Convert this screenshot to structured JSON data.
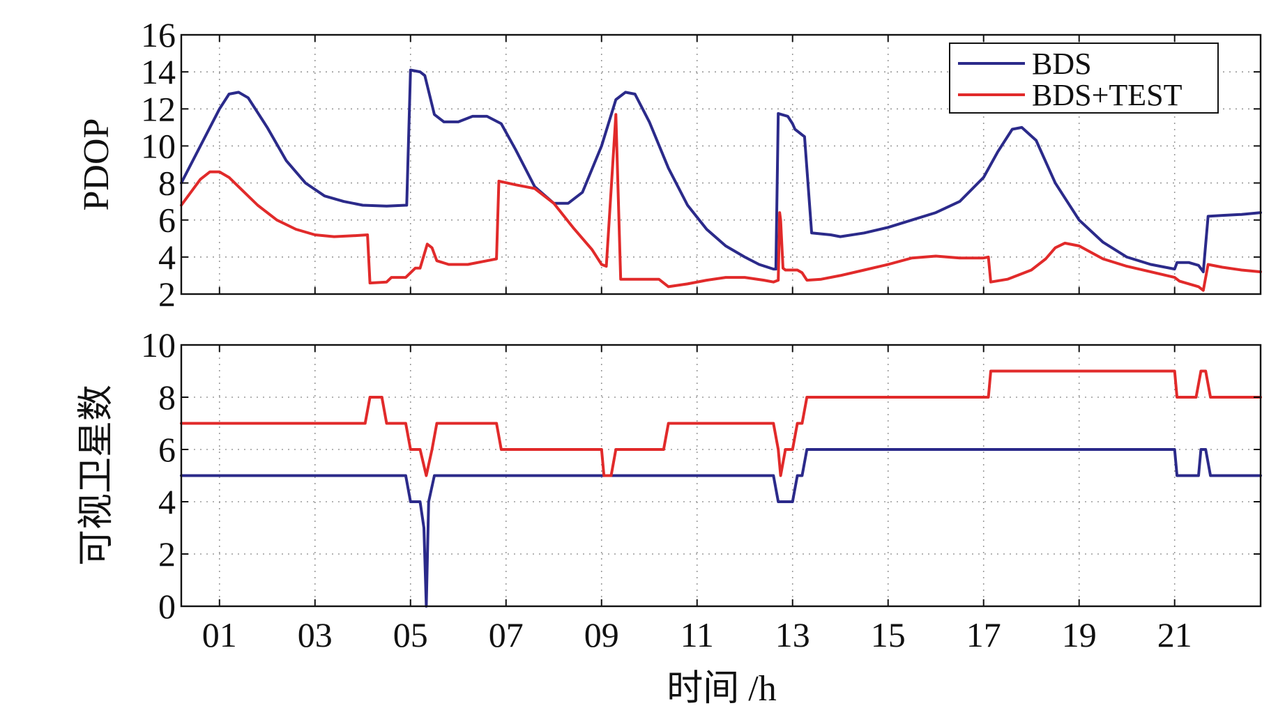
{
  "chart_data": [
    {
      "type": "line",
      "ylabel": "PDOP",
      "xlim": [
        0.2,
        22.8
      ],
      "ylim": [
        2,
        16
      ],
      "yticks": [
        2,
        4,
        6,
        8,
        10,
        12,
        14,
        16
      ],
      "xticks": [
        1,
        3,
        5,
        7,
        9,
        11,
        13,
        15,
        17,
        19,
        21
      ],
      "grid": true,
      "legend_position": "top-right",
      "series": [
        {
          "name": "BDS",
          "color": "#2b2a8a",
          "x": [
            0.2,
            0.6,
            1.0,
            1.2,
            1.4,
            1.6,
            2.0,
            2.4,
            2.8,
            3.2,
            3.6,
            4.0,
            4.5,
            4.9,
            4.92,
            5.0,
            5.2,
            5.3,
            5.5,
            5.7,
            6.0,
            6.3,
            6.6,
            6.9,
            7.2,
            7.6,
            8.0,
            8.3,
            8.6,
            9.0,
            9.3,
            9.5,
            9.7,
            10.0,
            10.4,
            10.8,
            11.2,
            11.6,
            12.0,
            12.3,
            12.6,
            12.65,
            12.7,
            12.9,
            13.0,
            13.05,
            13.2,
            13.25,
            13.4,
            13.8,
            14.0,
            14.5,
            15.0,
            15.5,
            16.0,
            16.5,
            17.0,
            17.3,
            17.6,
            17.8,
            18.1,
            18.5,
            19.0,
            19.5,
            20.0,
            20.5,
            21.0,
            21.05,
            21.3,
            21.5,
            21.6,
            21.7,
            22.0,
            22.4,
            22.8
          ],
          "y": [
            8.0,
            10.0,
            12.0,
            12.8,
            12.9,
            12.6,
            11.0,
            9.2,
            8.0,
            7.3,
            7.0,
            6.8,
            6.75,
            6.8,
            6.8,
            14.1,
            14.0,
            13.8,
            11.7,
            11.3,
            11.3,
            11.6,
            11.6,
            11.2,
            9.8,
            7.8,
            6.9,
            6.9,
            7.5,
            10.0,
            12.5,
            12.9,
            12.8,
            11.3,
            8.8,
            6.8,
            5.5,
            4.6,
            4.0,
            3.6,
            3.35,
            3.35,
            11.75,
            11.6,
            11.2,
            10.9,
            10.6,
            10.5,
            5.3,
            5.2,
            5.1,
            5.3,
            5.6,
            6.0,
            6.4,
            7.0,
            8.3,
            9.7,
            10.9,
            11.0,
            10.3,
            8.0,
            6.0,
            4.8,
            4.0,
            3.6,
            3.35,
            3.7,
            3.7,
            3.55,
            3.2,
            6.2,
            6.25,
            6.3,
            6.4
          ]
        },
        {
          "name": "BDS+TEST",
          "color": "#e12a2a",
          "x": [
            0.2,
            0.6,
            0.8,
            1.0,
            1.2,
            1.4,
            1.8,
            2.2,
            2.6,
            3.0,
            3.4,
            3.8,
            4.1,
            4.15,
            4.5,
            4.6,
            4.9,
            5.1,
            5.2,
            5.35,
            5.45,
            5.55,
            5.8,
            6.2,
            6.6,
            6.8,
            6.85,
            7.2,
            7.6,
            8.0,
            8.4,
            8.8,
            9.0,
            9.1,
            9.3,
            9.4,
            9.5,
            9.8,
            10.2,
            10.4,
            10.8,
            11.2,
            11.6,
            12.0,
            12.4,
            12.6,
            12.7,
            12.73,
            12.75,
            12.8,
            12.85,
            13.0,
            13.1,
            13.2,
            13.3,
            13.6,
            14.0,
            14.5,
            15.0,
            15.5,
            16.0,
            16.5,
            17.0,
            17.1,
            17.15,
            17.5,
            18.0,
            18.3,
            18.5,
            18.7,
            19.0,
            19.5,
            20.0,
            20.5,
            21.0,
            21.1,
            21.5,
            21.6,
            21.7,
            22.0,
            22.4,
            22.8
          ],
          "y": [
            6.8,
            8.2,
            8.6,
            8.6,
            8.3,
            7.8,
            6.8,
            6.0,
            5.5,
            5.2,
            5.1,
            5.15,
            5.2,
            2.6,
            2.65,
            2.9,
            2.9,
            3.4,
            3.4,
            4.7,
            4.5,
            3.8,
            3.6,
            3.6,
            3.8,
            3.9,
            8.1,
            7.9,
            7.7,
            6.9,
            5.6,
            4.4,
            3.6,
            3.5,
            11.7,
            2.8,
            2.8,
            2.8,
            2.8,
            2.4,
            2.55,
            2.75,
            2.9,
            2.9,
            2.75,
            2.65,
            2.75,
            6.4,
            6.0,
            3.4,
            3.3,
            3.3,
            3.3,
            3.15,
            2.75,
            2.8,
            3.0,
            3.3,
            3.6,
            3.95,
            4.05,
            3.95,
            3.95,
            4.0,
            2.65,
            2.8,
            3.3,
            3.9,
            4.5,
            4.75,
            4.6,
            3.9,
            3.5,
            3.2,
            2.9,
            2.7,
            2.4,
            2.2,
            3.6,
            3.45,
            3.3,
            3.2
          ]
        }
      ]
    },
    {
      "type": "line",
      "xlabel": "时间 /h",
      "ylabel": "可视卫星数",
      "xlim": [
        0.2,
        22.8
      ],
      "ylim": [
        0,
        10
      ],
      "yticks": [
        0,
        2,
        4,
        6,
        8,
        10
      ],
      "xticks": [
        1,
        3,
        5,
        7,
        9,
        11,
        13,
        15,
        17,
        19,
        21
      ],
      "xtick_labels": [
        "01",
        "03",
        "05",
        "07",
        "09",
        "11",
        "13",
        "15",
        "17",
        "19",
        "21"
      ],
      "grid": true,
      "series": [
        {
          "name": "BDS",
          "color": "#2b2a8a",
          "x": [
            0.2,
            4.9,
            5.0,
            5.2,
            5.28,
            5.33,
            5.38,
            5.5,
            12.6,
            12.7,
            13.0,
            13.1,
            13.2,
            13.3,
            21.0,
            21.05,
            21.5,
            21.55,
            21.65,
            21.75,
            22.8
          ],
          "y": [
            5,
            5,
            4,
            4,
            3,
            0,
            4,
            5,
            5,
            4,
            4,
            5,
            5,
            6,
            6,
            5,
            5,
            6,
            6,
            5,
            5
          ],
          "step": true
        },
        {
          "name": "BDS+TEST",
          "color": "#e12a2a",
          "x": [
            0.2,
            4.05,
            4.15,
            4.4,
            4.5,
            4.9,
            5.0,
            5.2,
            5.33,
            5.45,
            5.55,
            6.8,
            6.9,
            9.0,
            9.05,
            9.2,
            9.3,
            10.3,
            10.4,
            12.6,
            12.7,
            12.75,
            12.85,
            13.0,
            13.1,
            13.2,
            13.3,
            17.1,
            17.15,
            21.0,
            21.05,
            21.45,
            21.55,
            21.65,
            21.75,
            22.8
          ],
          "y": [
            7,
            7,
            8,
            8,
            7,
            7,
            6,
            6,
            5,
            6,
            7,
            7,
            6,
            6,
            5,
            5,
            6,
            6,
            7,
            7,
            6,
            5,
            6,
            6,
            7,
            7,
            8,
            8,
            9,
            9,
            8,
            8,
            9,
            9,
            8,
            8
          ],
          "step": true
        }
      ]
    }
  ]
}
